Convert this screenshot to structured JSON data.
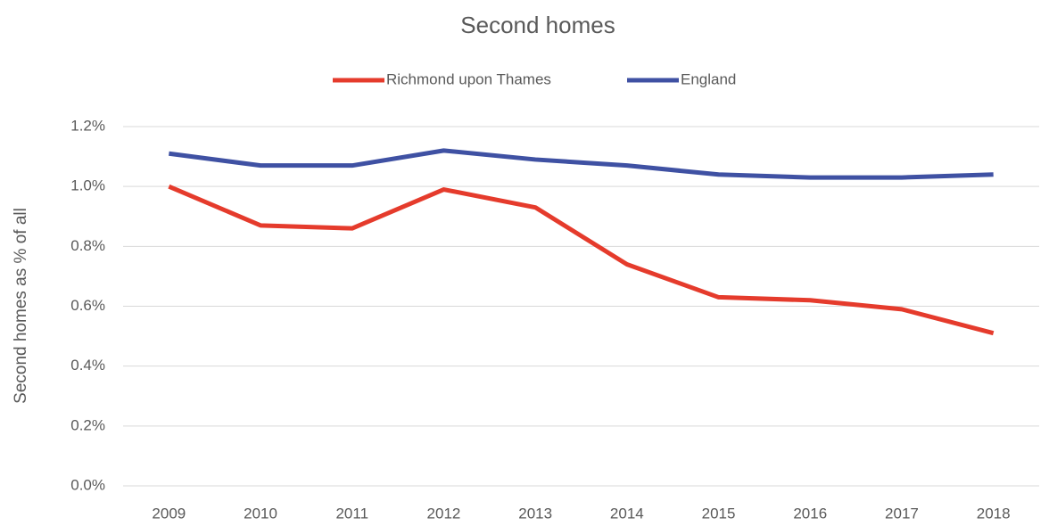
{
  "chart_data": {
    "type": "line",
    "title": "Second homes",
    "y_label": "Second homes as % of all",
    "categories": [
      "2009",
      "2010",
      "2011",
      "2012",
      "2013",
      "2014",
      "2015",
      "2016",
      "2017",
      "2018"
    ],
    "series": [
      {
        "name": "Richmond upon Thames",
        "color": "#e53b2c",
        "values": [
          1.0,
          0.87,
          0.86,
          0.99,
          0.93,
          0.74,
          0.63,
          0.62,
          0.59,
          0.51
        ]
      },
      {
        "name": "England",
        "color": "#3f51a3",
        "values": [
          1.11,
          1.07,
          1.07,
          1.12,
          1.09,
          1.07,
          1.04,
          1.03,
          1.03,
          1.04
        ]
      }
    ],
    "ylim": [
      0,
      1.2
    ],
    "yticks": [
      {
        "value": 0,
        "label": "0.0%"
      },
      {
        "value": 0.2,
        "label": "0.2%"
      },
      {
        "value": 0.4,
        "label": "0.4%"
      },
      {
        "value": 0.6,
        "label": "0.6%"
      },
      {
        "value": 0.8,
        "label": "0.8%"
      },
      {
        "value": 1.0,
        "label": "1.0%"
      },
      {
        "value": 1.2,
        "label": "1.2%"
      }
    ],
    "grid": true,
    "legend": "top"
  }
}
